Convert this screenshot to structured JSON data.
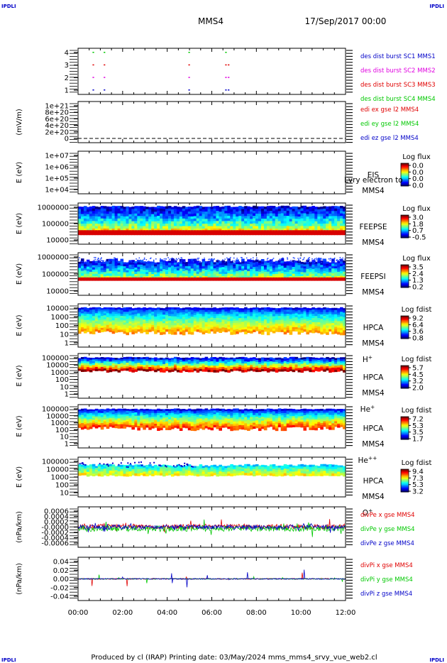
{
  "header": {
    "mission": "MMS4",
    "datetime": "17/Sep/2017 00:00",
    "corner_label": "IPDLI"
  },
  "footer": {
    "text": "Produced by cl (IRAP)   Printing date: 03/May/2024   mms_mms4_srvy_vue_web2.cl"
  },
  "time_axis": {
    "tick_labels": [
      "00:00",
      "02:00",
      "04:00",
      "06:00",
      "08:00",
      "10:00",
      "12:00"
    ],
    "range_hours": [
      0,
      12
    ]
  },
  "colors": {
    "red": "#e00000",
    "green": "#00c800",
    "blue": "#0000c8",
    "magenta": "#e000e0",
    "black": "#000000"
  },
  "panels": [
    {
      "id": "burst",
      "yticks": [
        "4",
        "3",
        "2",
        "1"
      ],
      "legend": [
        {
          "text": "des dist burst SC1 MMS1",
          "color": "#0000c8"
        },
        {
          "text": "des dist burst SC2 MMS2",
          "color": "#e000e0"
        },
        {
          "text": "des dist burst SC3 MMS3",
          "color": "#e00000"
        },
        {
          "text": "des dist burst SC4 MMS4",
          "color": "#00c800"
        }
      ],
      "marks_hours": [
        0.65,
        1.15,
        4.95,
        6.6,
        6.72
      ]
    },
    {
      "id": "edi",
      "ylabel": "(mV/m)",
      "yticks": [
        "1e+21",
        "8e+20",
        "6e+20",
        "4e+20",
        "2e+20",
        "0"
      ],
      "legend": [
        {
          "text": "edi ex gse l2 MMS4",
          "color": "#e00000"
        },
        {
          "text": "edi ey gse l2 MMS4",
          "color": "#00c800"
        },
        {
          "text": "edi ez gse l2 MMS4",
          "color": "#0000c8"
        }
      ]
    },
    {
      "id": "eis",
      "ylabel": "E (eV)",
      "yticks": [
        "1e+07",
        "1e+06",
        "1e+05",
        "1e+04"
      ],
      "right_labels": [
        "EIS",
        "MMS4"
      ],
      "overlay_label": "Lvry electron to",
      "colorbar": {
        "title": "Log flux",
        "ticks": [
          "0.0",
          "0.0",
          "0.0",
          "0.0"
        ]
      }
    },
    {
      "id": "feepse",
      "ylabel": "E (eV)",
      "yticks": [
        "1000000",
        "100000",
        "10000"
      ],
      "right_labels": [
        "FEEPSE",
        "MMS4"
      ],
      "colorbar": {
        "title": "Log flux",
        "ticks": [
          "3.0",
          "1.8",
          "0.7",
          "-0.5"
        ]
      }
    },
    {
      "id": "feepsi",
      "ylabel": "E (eV)",
      "yticks": [
        "1000000",
        "100000",
        "10000"
      ],
      "right_labels": [
        "FEEPSI",
        "MMS4"
      ],
      "colorbar": {
        "title": "Log flux",
        "ticks": [
          "3.5",
          "2.4",
          "1.3",
          "0.2"
        ]
      }
    },
    {
      "id": "hpca_h",
      "ylabel": "E (eV)",
      "yticks": [
        "10000",
        "1000",
        "100",
        "10",
        "1"
      ],
      "right_labels": [
        "HPCA",
        "MMS4"
      ],
      "species": "H",
      "species_sup": "+",
      "colorbar": {
        "title": "Log fdist",
        "ticks": [
          "9.2",
          "6.4",
          "3.6",
          "0.8"
        ]
      }
    },
    {
      "id": "hpca_he",
      "ylabel": "E (eV)",
      "yticks": [
        "100000",
        "10000",
        "1000",
        "100",
        "10",
        "1"
      ],
      "right_labels": [
        "HPCA",
        "MMS4"
      ],
      "species": "He",
      "species_sup": "+",
      "colorbar": {
        "title": "Log fdist",
        "ticks": [
          "5.7",
          "4.5",
          "3.2",
          "2.0"
        ]
      }
    },
    {
      "id": "hpca_hepp",
      "ylabel": "E (eV)",
      "yticks": [
        "100000",
        "10000",
        "1000",
        "100",
        "10",
        "1"
      ],
      "right_labels": [
        "HPCA",
        "MMS4"
      ],
      "species": "He",
      "species_sup": "++",
      "colorbar": {
        "title": "Log fdist",
        "ticks": [
          "7.2",
          "5.3",
          "3.5",
          "1.7"
        ]
      }
    },
    {
      "id": "hpca_o",
      "ylabel": "E (eV)",
      "yticks": [
        "100000",
        "10000",
        "1000",
        "100",
        "10"
      ],
      "right_labels": [
        "HPCA",
        "MMS4"
      ],
      "species": "O",
      "species_sup": "+",
      "colorbar": {
        "title": "Log fdist",
        "ticks": [
          "9.4",
          "7.3",
          "5.3",
          "3.2"
        ]
      }
    },
    {
      "id": "divpe",
      "ylabel": "(nPa/km)",
      "yticks": [
        "0.0006",
        "0.0004",
        "0.0002",
        "-0.0000",
        "-0.0002",
        "-0.0004",
        "-0.0006"
      ],
      "legend": [
        {
          "text": "divPe x gse MMS4",
          "color": "#e00000"
        },
        {
          "text": "divPe y gse MMS4",
          "color": "#00c800"
        },
        {
          "text": "divPe z gse MMS4",
          "color": "#0000c8"
        }
      ]
    },
    {
      "id": "divpi",
      "ylabel": "(nPa/km)",
      "yticks": [
        "0.04",
        "0.02",
        "0.00",
        "-0.02",
        "-0.04"
      ],
      "legend": [
        {
          "text": "divPi x gse MMS4",
          "color": "#e00000"
        },
        {
          "text": "divPi y gse MMS4",
          "color": "#00c800"
        },
        {
          "text": "divPi z gse MMS4",
          "color": "#0000c8"
        }
      ]
    }
  ],
  "chart_data": {
    "type": "line",
    "x_range_hours": [
      0,
      12
    ],
    "series": [
      {
        "name": "divPe x gse MMS4",
        "ylim": [
          -0.0007,
          0.0007
        ],
        "approx_level": 2e-05
      },
      {
        "name": "divPe y gse MMS4",
        "ylim": [
          -0.0007,
          0.0007
        ],
        "approx_level": -5e-05
      },
      {
        "name": "divPe z gse MMS4",
        "ylim": [
          -0.0007,
          0.0007
        ],
        "approx_level": 0.0
      },
      {
        "name": "divPi x gse MMS4",
        "ylim": [
          -0.05,
          0.05
        ],
        "approx_level": 0.0
      },
      {
        "name": "divPi y gse MMS4",
        "ylim": [
          -0.05,
          0.05
        ],
        "approx_level": 0.0
      },
      {
        "name": "divPi z gse MMS4",
        "ylim": [
          -0.05,
          0.05
        ],
        "approx_level": 0.0
      }
    ]
  }
}
